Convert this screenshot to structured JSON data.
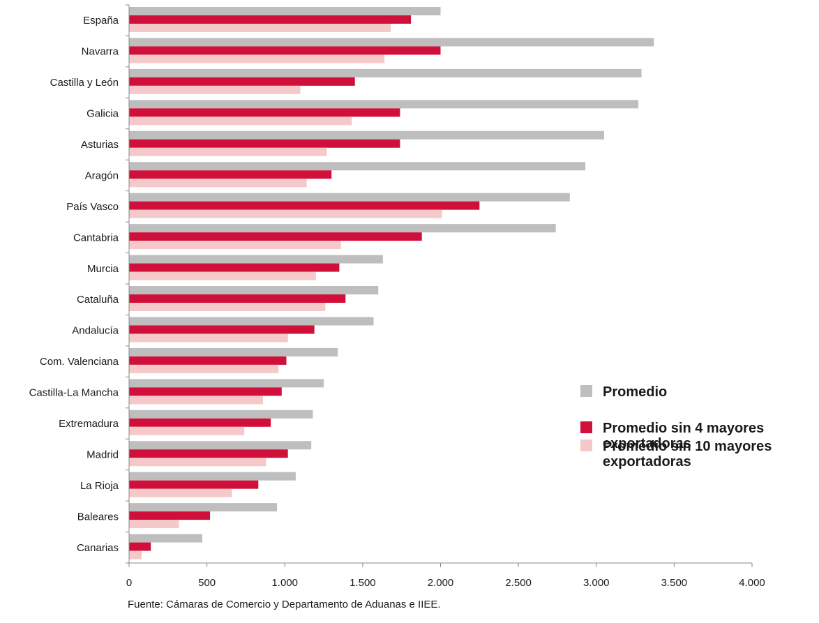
{
  "chart_data": {
    "type": "bar",
    "orientation": "horizontal",
    "categories": [
      "España",
      "Navarra",
      "Castilla y León",
      "Galicia",
      "Asturias",
      "Aragón",
      "País Vasco",
      "Cantabria",
      "Murcia",
      "Cataluña",
      "Andalucía",
      "Com. Valenciana",
      "Castilla-La Mancha",
      "Extremadura",
      "Madrid",
      "La Rioja",
      "Baleares",
      "Canarias"
    ],
    "series": [
      {
        "name": "Promedio",
        "color": "#bebebe",
        "legend_lines": [
          "Promedio"
        ],
        "values": [
          2000,
          3370,
          3290,
          3270,
          3050,
          2930,
          2830,
          2740,
          1630,
          1600,
          1570,
          1340,
          1250,
          1180,
          1170,
          1070,
          950,
          470
        ]
      },
      {
        "name": "Promedio sin 4 mayores exportadoras",
        "color": "#d0103a",
        "legend_lines": [
          "Promedio sin 4 mayores",
          "exportadoras"
        ],
        "values": [
          1810,
          2000,
          1450,
          1740,
          1740,
          1300,
          2250,
          1880,
          1350,
          1390,
          1190,
          1010,
          980,
          910,
          1020,
          830,
          520,
          140
        ]
      },
      {
        "name": "Promedio sin 10 mayores exportadoras",
        "color": "#f5c9c9",
        "legend_lines": [
          "Promedio sin 10 mayores",
          "exportadoras"
        ],
        "values": [
          1680,
          1640,
          1100,
          1430,
          1270,
          1140,
          2010,
          1360,
          1200,
          1260,
          1020,
          960,
          860,
          740,
          880,
          660,
          320,
          80
        ]
      }
    ],
    "xlim": [
      0,
      4000
    ],
    "xticks": [
      0,
      500,
      1000,
      1500,
      2000,
      2500,
      3000,
      3500,
      4000
    ],
    "xtick_labels": [
      "0",
      "500",
      "1.000",
      "1.500",
      "2.000",
      "2.500",
      "3.000",
      "3.500",
      "4.000"
    ],
    "title": "",
    "xlabel": "",
    "ylabel": "",
    "grid": false,
    "legend_position": "right"
  },
  "source_note": "Fuente: Cámaras de Comercio y Departamento de Aduanas e IIEE."
}
